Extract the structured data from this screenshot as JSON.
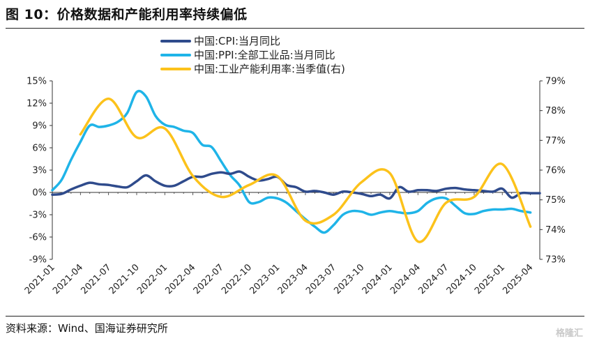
{
  "figure": {
    "title": "图 10：价格数据和产能利用率持续偏低",
    "source": "资料来源：Wind、国海证券研究所",
    "watermark": "格隆汇"
  },
  "chart_data": {
    "type": "line",
    "title": "图 10：价格数据和产能利用率持续偏低",
    "x_labels": [
      "2021-01",
      "2021-04",
      "2021-07",
      "2021-10",
      "2022-01",
      "2022-04",
      "2022-07",
      "2022-10",
      "2023-01",
      "2023-04",
      "2023-07",
      "2023-10",
      "2024-01",
      "2024-04",
      "2024-07",
      "2024-10",
      "2025-01",
      "2025-04"
    ],
    "y_left": {
      "min": -9,
      "max": 15,
      "step": 3,
      "ticks": [
        "-9%",
        "-6%",
        "-3%",
        "0%",
        "3%",
        "6%",
        "9%",
        "12%",
        "15%"
      ]
    },
    "y_right": {
      "min": 73,
      "max": 79,
      "step": 1,
      "ticks": [
        "73%",
        "74%",
        "75%",
        "76%",
        "77%",
        "78%",
        "79%"
      ]
    },
    "legend_position": "top-center",
    "grid": false,
    "series": [
      {
        "name": "中国:CPI:当月同比",
        "axis": "left",
        "color": "#2f4b8c",
        "width": 3.5,
        "points": [
          [
            "2021-01",
            -0.3
          ],
          [
            "2021-02",
            -0.2
          ],
          [
            "2021-03",
            0.4
          ],
          [
            "2021-04",
            0.9
          ],
          [
            "2021-05",
            1.3
          ],
          [
            "2021-06",
            1.1
          ],
          [
            "2021-07",
            1.0
          ],
          [
            "2021-08",
            0.8
          ],
          [
            "2021-09",
            0.7
          ],
          [
            "2021-10",
            1.5
          ],
          [
            "2021-11",
            2.3
          ],
          [
            "2021-12",
            1.5
          ],
          [
            "2022-01",
            0.9
          ],
          [
            "2022-02",
            0.9
          ],
          [
            "2022-03",
            1.5
          ],
          [
            "2022-04",
            2.1
          ],
          [
            "2022-05",
            2.1
          ],
          [
            "2022-06",
            2.5
          ],
          [
            "2022-07",
            2.7
          ],
          [
            "2022-08",
            2.5
          ],
          [
            "2022-09",
            2.8
          ],
          [
            "2022-10",
            2.1
          ],
          [
            "2022-11",
            1.6
          ],
          [
            "2022-12",
            1.8
          ],
          [
            "2023-01",
            2.1
          ],
          [
            "2023-02",
            1.0
          ],
          [
            "2023-03",
            0.7
          ],
          [
            "2023-04",
            0.1
          ],
          [
            "2023-05",
            0.2
          ],
          [
            "2023-06",
            0.0
          ],
          [
            "2023-07",
            -0.3
          ],
          [
            "2023-08",
            0.1
          ],
          [
            "2023-09",
            0.0
          ],
          [
            "2023-10",
            -0.2
          ],
          [
            "2023-11",
            -0.5
          ],
          [
            "2023-12",
            -0.3
          ],
          [
            "2024-01",
            -0.8
          ],
          [
            "2024-02",
            0.7
          ],
          [
            "2024-03",
            0.1
          ],
          [
            "2024-04",
            0.3
          ],
          [
            "2024-05",
            0.3
          ],
          [
            "2024-06",
            0.2
          ],
          [
            "2024-07",
            0.5
          ],
          [
            "2024-08",
            0.6
          ],
          [
            "2024-09",
            0.4
          ],
          [
            "2024-10",
            0.3
          ],
          [
            "2024-11",
            0.2
          ],
          [
            "2024-12",
            0.1
          ],
          [
            "2025-01",
            0.5
          ],
          [
            "2025-02",
            -0.7
          ],
          [
            "2025-03",
            -0.1
          ],
          [
            "2025-04",
            -0.1
          ],
          [
            "2025-05",
            -0.1
          ]
        ]
      },
      {
        "name": "中国:PPI:全部工业品:当月同比",
        "axis": "left",
        "color": "#1fb4e8",
        "width": 3.5,
        "points": [
          [
            "2021-01",
            0.3
          ],
          [
            "2021-02",
            1.7
          ],
          [
            "2021-03",
            4.4
          ],
          [
            "2021-04",
            6.8
          ],
          [
            "2021-05",
            9.0
          ],
          [
            "2021-06",
            8.8
          ],
          [
            "2021-07",
            9.0
          ],
          [
            "2021-08",
            9.5
          ],
          [
            "2021-09",
            10.7
          ],
          [
            "2021-10",
            13.5
          ],
          [
            "2021-11",
            12.9
          ],
          [
            "2021-12",
            10.3
          ],
          [
            "2022-01",
            9.1
          ],
          [
            "2022-02",
            8.8
          ],
          [
            "2022-03",
            8.3
          ],
          [
            "2022-04",
            8.0
          ],
          [
            "2022-05",
            6.4
          ],
          [
            "2022-06",
            6.1
          ],
          [
            "2022-07",
            4.2
          ],
          [
            "2022-08",
            2.3
          ],
          [
            "2022-09",
            0.9
          ],
          [
            "2022-10",
            -1.3
          ],
          [
            "2022-11",
            -1.3
          ],
          [
            "2022-12",
            -0.7
          ],
          [
            "2023-01",
            -0.8
          ],
          [
            "2023-02",
            -1.4
          ],
          [
            "2023-03",
            -2.5
          ],
          [
            "2023-04",
            -3.6
          ],
          [
            "2023-05",
            -4.6
          ],
          [
            "2023-06",
            -5.4
          ],
          [
            "2023-07",
            -4.4
          ],
          [
            "2023-08",
            -3.0
          ],
          [
            "2023-09",
            -2.5
          ],
          [
            "2023-10",
            -2.6
          ],
          [
            "2023-11",
            -3.0
          ],
          [
            "2023-12",
            -2.7
          ],
          [
            "2024-01",
            -2.5
          ],
          [
            "2024-02",
            -2.7
          ],
          [
            "2024-03",
            -2.8
          ],
          [
            "2024-04",
            -2.5
          ],
          [
            "2024-05",
            -1.4
          ],
          [
            "2024-06",
            -0.8
          ],
          [
            "2024-07",
            -0.8
          ],
          [
            "2024-08",
            -1.8
          ],
          [
            "2024-09",
            -2.8
          ],
          [
            "2024-10",
            -2.9
          ],
          [
            "2024-11",
            -2.5
          ],
          [
            "2024-12",
            -2.3
          ],
          [
            "2025-01",
            -2.3
          ],
          [
            "2025-02",
            -2.2
          ],
          [
            "2025-03",
            -2.5
          ],
          [
            "2025-04",
            -2.7
          ]
        ]
      },
      {
        "name": "中国:工业产能利用率:当季值(右)",
        "axis": "right",
        "color": "#fcc21b",
        "width": 3.5,
        "points": [
          [
            "2021-04",
            77.2
          ],
          [
            "2021-07",
            78.4
          ],
          [
            "2021-10",
            77.1
          ],
          [
            "2022-01",
            77.4
          ],
          [
            "2022-04",
            75.8
          ],
          [
            "2022-07",
            75.1
          ],
          [
            "2022-10",
            75.5
          ],
          [
            "2023-01",
            75.8
          ],
          [
            "2023-04",
            74.3
          ],
          [
            "2023-07",
            74.5
          ],
          [
            "2023-10",
            75.6
          ],
          [
            "2024-01",
            75.9
          ],
          [
            "2024-04",
            73.6
          ],
          [
            "2024-07",
            74.9
          ],
          [
            "2024-10",
            75.1
          ],
          [
            "2025-01",
            76.2
          ],
          [
            "2025-04",
            74.1
          ]
        ]
      }
    ]
  }
}
